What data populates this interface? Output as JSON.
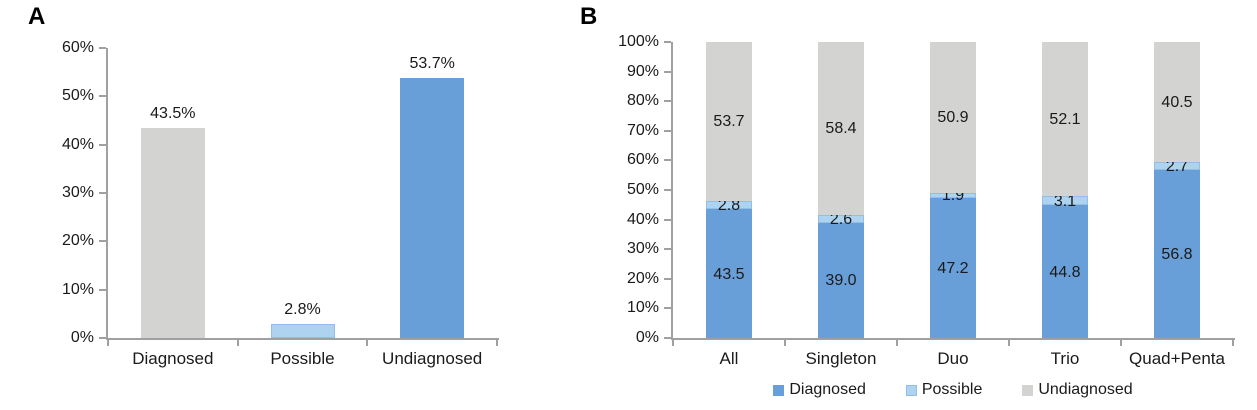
{
  "panels": [
    {
      "label": "A"
    },
    {
      "label": "B"
    }
  ],
  "colors": {
    "diagnosed_blue": "#689FD8",
    "possible_light_blue": "#AED3F0",
    "undiagnosed_gray": "#D3D3D1",
    "possible_border": "#93BFE6",
    "axis": "#A0A0A0",
    "text": "#1A1A1A"
  },
  "chart_data": [
    {
      "type": "bar",
      "panel": "A",
      "title": "",
      "xlabel": "",
      "ylabel": "",
      "categories": [
        "Diagnosed",
        "Possible",
        "Undiagnosed"
      ],
      "values": [
        43.5,
        2.8,
        53.7
      ],
      "value_labels": [
        "43.5%",
        "2.8%",
        "53.7%"
      ],
      "bar_colors": [
        "#D3D3D1",
        "#AED3F0",
        "#689FD8"
      ],
      "bar_borders": [
        null,
        "#93BFE6",
        null
      ],
      "ylim": [
        0,
        60
      ],
      "ytick_step": 10,
      "ytick_suffix": "%",
      "grid": false,
      "legend_position": "none"
    },
    {
      "type": "stacked-bar",
      "panel": "B",
      "title": "",
      "xlabel": "",
      "ylabel": "",
      "categories": [
        "All",
        "Singleton",
        "Duo",
        "Trio",
        "Quad+Penta"
      ],
      "series": [
        {
          "name": "Diagnosed",
          "color": "#689FD8",
          "values": [
            43.5,
            39.0,
            47.2,
            44.8,
            56.8
          ],
          "value_labels": [
            "43.5",
            "39.0",
            "47.2",
            "44.8",
            "56.8"
          ]
        },
        {
          "name": "Possible",
          "color": "#AED3F0",
          "border": "#93BFE6",
          "values": [
            2.8,
            2.6,
            1.9,
            3.1,
            2.7
          ],
          "value_labels": [
            "2.8",
            "2.6",
            "1.9",
            "3.1",
            "2.7"
          ]
        },
        {
          "name": "Undiagnosed",
          "color": "#D3D3D1",
          "values": [
            53.7,
            58.4,
            50.9,
            52.1,
            40.5
          ],
          "value_labels": [
            "53.7",
            "58.4",
            "50.9",
            "52.1",
            "40.5"
          ]
        }
      ],
      "ylim": [
        0,
        100
      ],
      "ytick_step": 10,
      "ytick_suffix": "%",
      "grid": false,
      "legend_position": "bottom",
      "legend_labels": [
        "Diagnosed",
        "Possible",
        "Undiagnosed"
      ]
    }
  ]
}
